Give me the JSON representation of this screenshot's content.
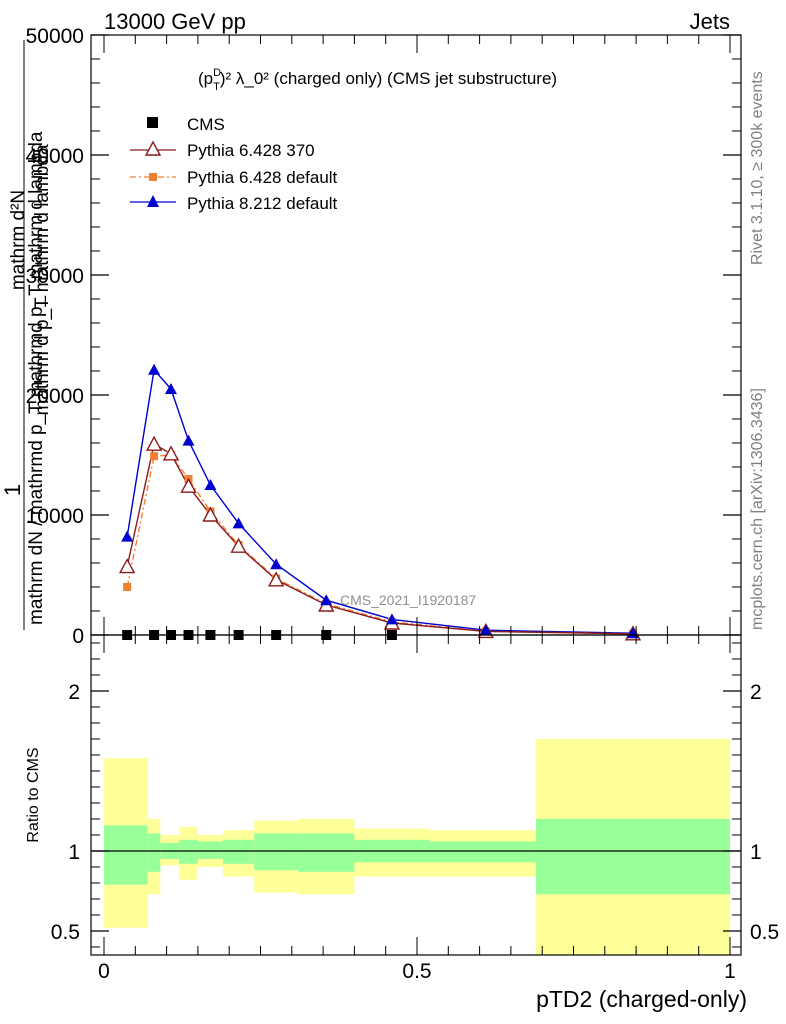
{
  "header": {
    "left": "13000 GeV pp",
    "right": "Jets"
  },
  "side_notes": {
    "rivet": "Rivet 3.1.10, ≥ 300k events",
    "mcplots": "mcplots.cern.ch [arXiv:1306.3436]"
  },
  "chart_data": [
    {
      "type": "line",
      "title_main": "(p",
      "title_sub": "T",
      "title_sup": "D",
      "title_rest": ")² λ_0² (charged only) (CMS jet substructure)",
      "ylabel": {
        "numerator": "1",
        "denominator": "mathrm dN / mathrmd p_T mathrmd p_T mathrm d lambda",
        "inner_numerator": "mathrm d²N",
        "inner_denominator": "mathrm d p_T mathrm d lambda"
      },
      "ylim": [
        0,
        50000
      ],
      "yticks": [
        0,
        10000,
        20000,
        30000,
        40000,
        50000
      ],
      "ytick_labels": [
        "0",
        "10000",
        "20000",
        "30000",
        "40000",
        "50000"
      ],
      "xlim": [
        -0.02,
        1.0
      ],
      "analysis_label": "CMS_2021_I1920187",
      "legend": [
        {
          "name": "CMS",
          "color": "#000000",
          "marker": "square"
        },
        {
          "name": "Pythia 6.428 370",
          "color": "#8b1a1a",
          "marker": "triangle-open"
        },
        {
          "name": "Pythia 6.428 default",
          "color": "#f08030",
          "marker": "square-small"
        },
        {
          "name": "Pythia 8.212 default",
          "color": "#0000d0",
          "marker": "triangle"
        }
      ],
      "series": [
        {
          "name": "CMS",
          "x": [
            0.037,
            0.08,
            0.107,
            0.135,
            0.17,
            0.215,
            0.275,
            0.355,
            0.46
          ],
          "y": [
            0,
            0,
            0,
            0,
            0,
            0,
            0,
            0,
            0
          ]
        },
        {
          "name": "Pythia 6.428 370",
          "x": [
            0.037,
            0.08,
            0.107,
            0.135,
            0.17,
            0.215,
            0.275,
            0.355,
            0.46,
            0.61,
            0.845
          ],
          "y": [
            5700,
            15900,
            15100,
            12400,
            10000,
            7400,
            4600,
            2500,
            1000,
            300,
            100
          ]
        },
        {
          "name": "Pythia 6.428 default",
          "x": [
            0.037,
            0.08,
            0.107,
            0.135,
            0.17,
            0.215,
            0.275,
            0.355,
            0.46,
            0.61,
            0.845
          ],
          "y": [
            4000,
            14900,
            15000,
            13000,
            10300,
            7500,
            4700,
            2600,
            1100,
            300,
            100
          ]
        },
        {
          "name": "Pythia 8.212 default",
          "x": [
            0.037,
            0.08,
            0.107,
            0.135,
            0.17,
            0.215,
            0.275,
            0.355,
            0.46,
            0.61,
            0.845
          ],
          "y": [
            8200,
            22100,
            20500,
            16200,
            12500,
            9300,
            5900,
            2900,
            1300,
            400,
            150
          ]
        }
      ]
    },
    {
      "type": "band",
      "ylabel": "Ratio to CMS",
      "xlabel": "pTD2 (charged-only)",
      "ylim": [
        0.35,
        2.35
      ],
      "yticks": [
        0.5,
        1,
        2
      ],
      "ytick_labels": [
        "0.5",
        "1",
        "2"
      ],
      "xticks": [
        0,
        0.5,
        1
      ],
      "xtick_labels": [
        "0",
        "0.5",
        "1"
      ],
      "bins": [
        {
          "x0": 0.0,
          "x1": 0.07,
          "inner": [
            0.79,
            1.16
          ],
          "outer": [
            0.52,
            1.58
          ]
        },
        {
          "x0": 0.07,
          "x1": 0.09,
          "inner": [
            0.87,
            1.11
          ],
          "outer": [
            0.73,
            1.2
          ]
        },
        {
          "x0": 0.09,
          "x1": 0.12,
          "inner": [
            0.95,
            1.05
          ],
          "outer": [
            0.91,
            1.1
          ]
        },
        {
          "x0": 0.12,
          "x1": 0.15,
          "inner": [
            0.92,
            1.07
          ],
          "outer": [
            0.82,
            1.15
          ]
        },
        {
          "x0": 0.15,
          "x1": 0.19,
          "inner": [
            0.95,
            1.06
          ],
          "outer": [
            0.9,
            1.1
          ]
        },
        {
          "x0": 0.19,
          "x1": 0.24,
          "inner": [
            0.92,
            1.07
          ],
          "outer": [
            0.84,
            1.13
          ]
        },
        {
          "x0": 0.24,
          "x1": 0.31,
          "inner": [
            0.88,
            1.11
          ],
          "outer": [
            0.74,
            1.19
          ]
        },
        {
          "x0": 0.31,
          "x1": 0.4,
          "inner": [
            0.87,
            1.11
          ],
          "outer": [
            0.73,
            1.2
          ]
        },
        {
          "x0": 0.4,
          "x1": 0.52,
          "inner": [
            0.93,
            1.07
          ],
          "outer": [
            0.84,
            1.14
          ]
        },
        {
          "x0": 0.52,
          "x1": 0.69,
          "inner": [
            0.93,
            1.06
          ],
          "outer": [
            0.84,
            1.13
          ]
        },
        {
          "x0": 0.69,
          "x1": 1.0,
          "inner": [
            0.73,
            1.2
          ],
          "outer": [
            0.35,
            1.7
          ]
        }
      ],
      "inner_color": "#99ff99",
      "outer_color": "#ffff99"
    }
  ]
}
